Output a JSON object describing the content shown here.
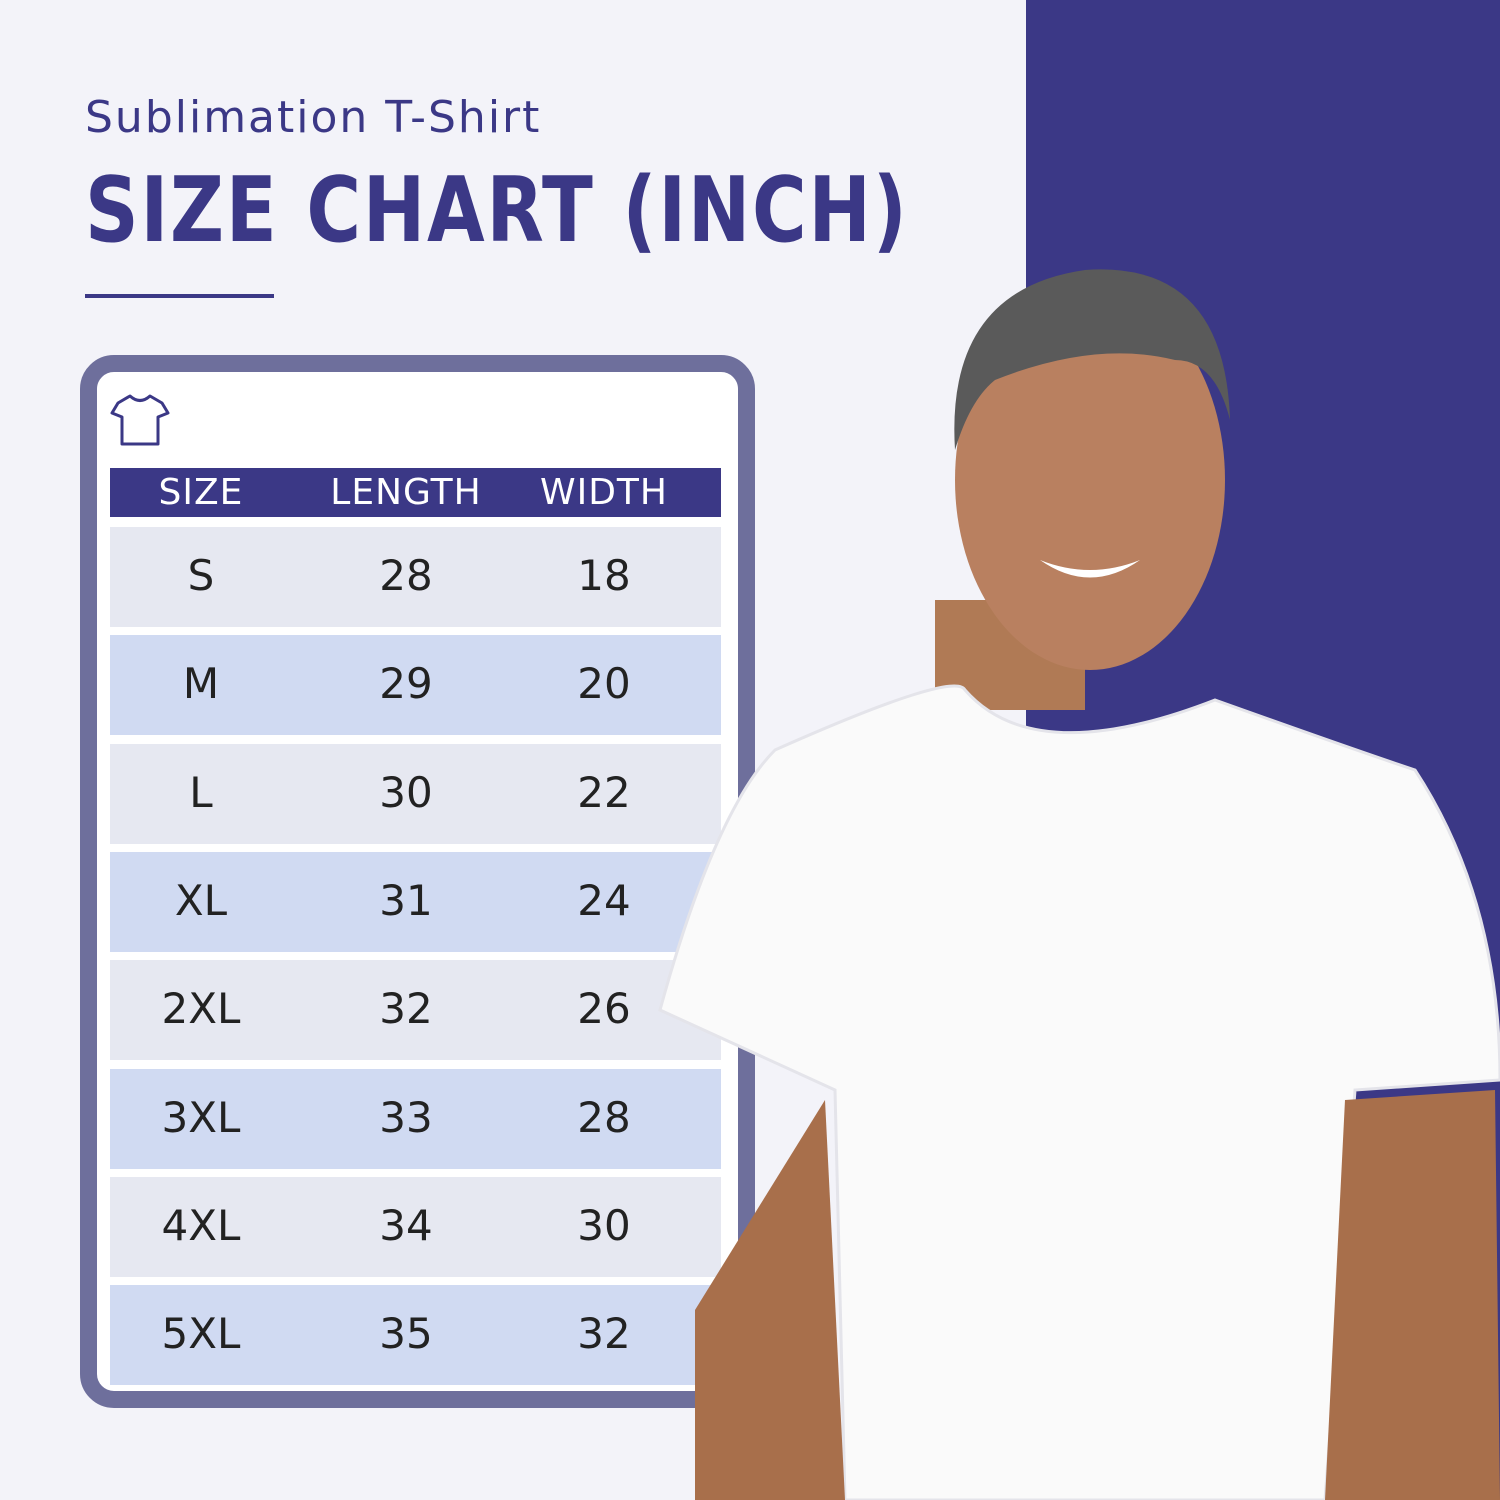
{
  "header": {
    "subtitle": "Sublimation T-Shirt",
    "title": "SIZE CHART (INCH)"
  },
  "colors": {
    "brand": "#3b3886",
    "frame": "#6e6f9c",
    "row_light": "#e6e8f1",
    "row_blue": "#d0daf2",
    "background": "#f3f3f9"
  },
  "icons": {
    "table": "t-shirt-icon"
  },
  "chart_data": {
    "type": "table",
    "columns": [
      "SIZE",
      "LENGTH",
      "WIDTH"
    ],
    "rows": [
      [
        "S",
        "28",
        "18"
      ],
      [
        "M",
        "29",
        "20"
      ],
      [
        "L",
        "30",
        "22"
      ],
      [
        "XL",
        "31",
        "24"
      ],
      [
        "2XL",
        "32",
        "26"
      ],
      [
        "3XL",
        "33",
        "28"
      ],
      [
        "4XL",
        "34",
        "30"
      ],
      [
        "5XL",
        "35",
        "32"
      ]
    ]
  }
}
